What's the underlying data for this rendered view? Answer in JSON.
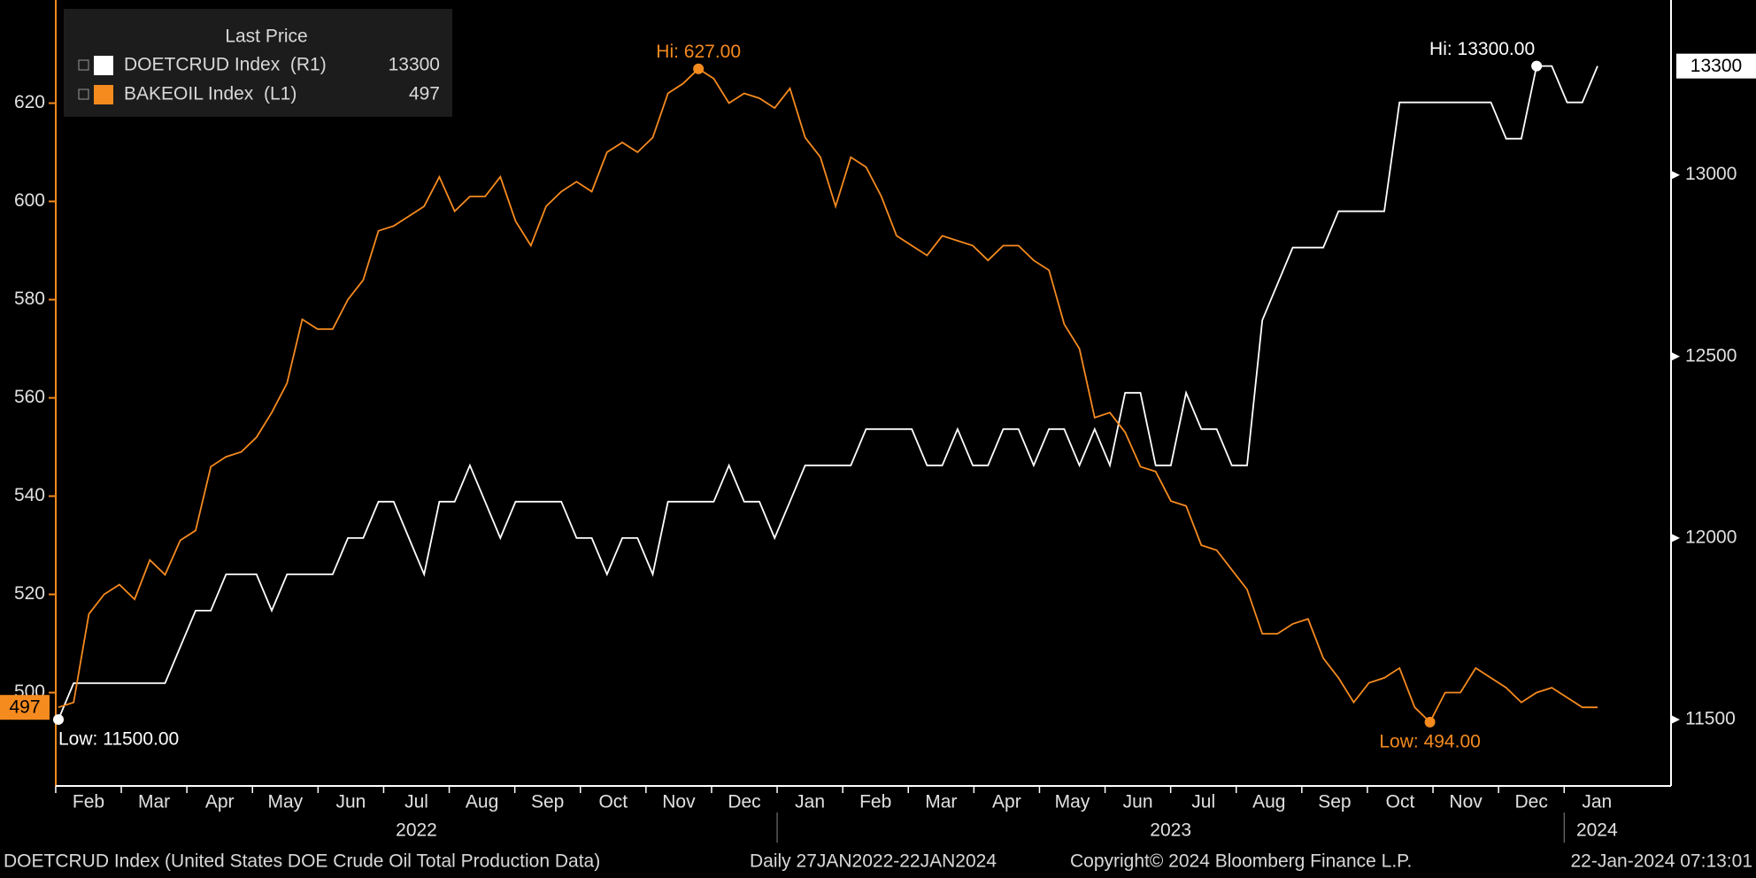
{
  "chart_data": {
    "type": "line",
    "legend_title": "Last Price",
    "series": [
      {
        "name": "DOETCRUD Index  (R1)",
        "color": "#ffffff",
        "axis": "y2",
        "hi_label": "Hi: 13300.00",
        "low_label": "Low: 11500.00",
        "values": [
          11500,
          11600,
          11600,
          11600,
          11600,
          11600,
          11600,
          11600,
          11700,
          11800,
          11800,
          11900,
          11900,
          11900,
          11800,
          11900,
          11900,
          11900,
          11900,
          12000,
          12000,
          12100,
          12100,
          12000,
          11900,
          12100,
          12100,
          12200,
          12100,
          12000,
          12100,
          12100,
          12100,
          12100,
          12000,
          12000,
          11900,
          12000,
          12000,
          11900,
          12100,
          12100,
          12100,
          12100,
          12200,
          12100,
          12100,
          12000,
          12100,
          12200,
          12200,
          12200,
          12200,
          12300,
          12300,
          12300,
          12300,
          12200,
          12200,
          12300,
          12200,
          12200,
          12300,
          12300,
          12200,
          12300,
          12300,
          12200,
          12300,
          12200,
          12400,
          12400,
          12200,
          12200,
          12400,
          12300,
          12300,
          12200,
          12200,
          12600,
          12700,
          12800,
          12800,
          12800,
          12900,
          12900,
          12900,
          12900,
          13200,
          13200,
          13200,
          13200,
          13200,
          13200,
          13200,
          13100,
          13100,
          13300,
          13300,
          13200,
          13200,
          13300
        ]
      },
      {
        "name": "BAKEOIL Index  (L1)",
        "color": "#f58a1f",
        "hi_label": "Hi: 627.00",
        "low_label": "Low: 494.00",
        "values": [
          497,
          498,
          516,
          520,
          522,
          519,
          527,
          524,
          531,
          533,
          546,
          548,
          549,
          552,
          557,
          563,
          576,
          574,
          574,
          580,
          584,
          594,
          595,
          597,
          599,
          605,
          598,
          601,
          601,
          605,
          596,
          591,
          599,
          602,
          604,
          602,
          610,
          612,
          610,
          613,
          622,
          624,
          627,
          625,
          620,
          622,
          621,
          619,
          623,
          613,
          609,
          599,
          609,
          607,
          601,
          593,
          591,
          589,
          593,
          592,
          591,
          588,
          591,
          591,
          588,
          586,
          575,
          570,
          556,
          557,
          553,
          546,
          545,
          539,
          538,
          530,
          529,
          525,
          521,
          512,
          512,
          514,
          515,
          507,
          503,
          498,
          502,
          503,
          505,
          497,
          494,
          500,
          500,
          505,
          503,
          501,
          498,
          500,
          501,
          499,
          497,
          497
        ]
      }
    ],
    "ylim": [
      481,
      641
    ],
    "yticks": [
      500,
      520,
      540,
      560,
      580,
      600,
      620
    ],
    "y2lim": [
      11317,
      13482
    ],
    "y2ticks": [
      11500,
      12000,
      12500,
      13000
    ],
    "xticks": [
      {
        "value": "2022-02",
        "label": "Feb"
      },
      {
        "value": "2022-03",
        "label": "Mar"
      },
      {
        "value": "2022-04",
        "label": "Apr"
      },
      {
        "value": "2022-05",
        "label": "May"
      },
      {
        "value": "2022-06",
        "label": "Jun"
      },
      {
        "value": "2022-07",
        "label": "Jul"
      },
      {
        "value": "2022-08",
        "label": "Aug"
      },
      {
        "value": "2022-09",
        "label": "Sep"
      },
      {
        "value": "2022-10",
        "label": "Oct"
      },
      {
        "value": "2022-11",
        "label": "Nov"
      },
      {
        "value": "2022-12",
        "label": "Dec"
      },
      {
        "value": "2023-01",
        "label": "Jan"
      },
      {
        "value": "2023-02",
        "label": "Feb"
      },
      {
        "value": "2023-03",
        "label": "Mar"
      },
      {
        "value": "2023-04",
        "label": "Apr"
      },
      {
        "value": "2023-05",
        "label": "May"
      },
      {
        "value": "2023-06",
        "label": "Jun"
      },
      {
        "value": "2023-07",
        "label": "Jul"
      },
      {
        "value": "2023-08",
        "label": "Aug"
      },
      {
        "value": "2023-09",
        "label": "Sep"
      },
      {
        "value": "2023-10",
        "label": "Oct"
      },
      {
        "value": "2023-11",
        "label": "Nov"
      },
      {
        "value": "2023-12",
        "label": "Dec"
      },
      {
        "value": "2024-01",
        "label": "Jan"
      }
    ],
    "years": [
      "2022",
      "2023",
      "2024"
    ],
    "footer": {
      "description": "DOETCRUD Index (United States DOE Crude Oil Total Production Data)",
      "period": "Daily 27JAN2022-22JAN2024",
      "copyright": "Copyright© 2024 Bloomberg Finance L.P.",
      "timestamp": "22-Jan-2024 07:13:01"
    }
  }
}
